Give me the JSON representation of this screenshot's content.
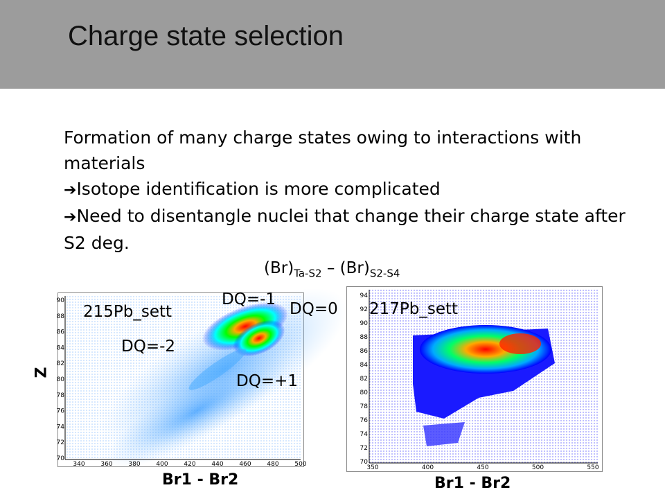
{
  "header": {
    "title": "Charge state selection"
  },
  "body": {
    "line1": "Formation of many charge states owing to interactions with materials",
    "bullet_icon": "right-arrow-icon",
    "bullet1": "Isotope identification is more complicated",
    "bullet2": "Need to disentangle nuclei that change their charge state after S2 deg."
  },
  "formula": {
    "term1": "(Br)",
    "sub1": "Ta-S2",
    "operator": " – ",
    "term2": "(Br)",
    "sub2": "S2-S4"
  },
  "plot_left": {
    "name": "215Pb_sett",
    "y_axis_title": "Z",
    "x_axis_title": "Br1 - Br2",
    "labels": {
      "dq_minus1": "DQ=-1",
      "dq_minus2": "DQ=-2",
      "dq_plus1": "DQ=+1",
      "dq_zero": "DQ=0"
    },
    "y_ticks": [
      "90",
      "88",
      "86",
      "84",
      "82",
      "80",
      "78",
      "76",
      "74",
      "72",
      "70"
    ],
    "x_ticks": [
      "340",
      "360",
      "380",
      "400",
      "420",
      "440",
      "460",
      "480",
      "500"
    ]
  },
  "plot_right": {
    "name": "217Pb_sett",
    "x_axis_title": "Br1 - Br2",
    "y_ticks": [
      "94",
      "92",
      "90",
      "88",
      "86",
      "84",
      "82",
      "80",
      "78",
      "76",
      "74",
      "72",
      "70"
    ],
    "x_ticks": [
      "350",
      "400",
      "450",
      "500",
      "550"
    ]
  },
  "colors": {
    "header_bg": "#9c9c9c",
    "heat_low": "#0000ff",
    "heat_mid": "#00ff00",
    "heat_high": "#ff0000"
  }
}
